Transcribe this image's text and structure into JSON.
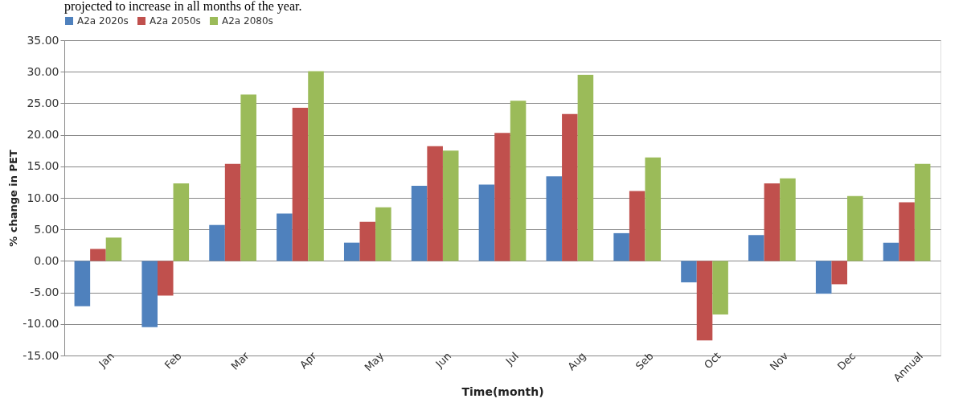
{
  "chart_data": {
    "type": "bar",
    "annotations": [
      "projected to increase in all months of the year."
    ],
    "xlabel": "Time(month)",
    "ylabel": "% change in PET",
    "categories": [
      "Jan",
      "Feb",
      "Mar",
      "Apr",
      "May",
      "Jun",
      "Jul",
      "Aug",
      "Seb",
      "Oct",
      "Nov",
      "Dec",
      "Annual"
    ],
    "series": [
      {
        "name": "A2a 2020s",
        "color": "#4f81bd",
        "values": [
          -7.2,
          -10.5,
          5.7,
          7.5,
          2.9,
          11.9,
          12.1,
          13.4,
          4.4,
          -3.4,
          4.1,
          -5.2,
          2.9
        ]
      },
      {
        "name": "A2a 2050s",
        "color": "#c0504d",
        "values": [
          1.9,
          -5.5,
          15.4,
          24.3,
          6.2,
          18.2,
          20.3,
          23.3,
          11.1,
          -12.6,
          12.3,
          -3.7,
          9.3
        ]
      },
      {
        "name": "A2a 2080s",
        "color": "#9bbb59",
        "values": [
          3.7,
          12.3,
          26.4,
          30.1,
          8.5,
          17.5,
          25.4,
          29.5,
          16.4,
          -8.5,
          13.1,
          10.3,
          15.4
        ]
      }
    ],
    "ylim": [
      -15,
      35
    ],
    "yticks": [
      {
        "value": -15,
        "label": "-15.00"
      },
      {
        "value": -10,
        "label": "-10.00"
      },
      {
        "value": -5,
        "label": "-5.00"
      },
      {
        "value": 0,
        "label": "0.00"
      },
      {
        "value": 5,
        "label": "5.00"
      },
      {
        "value": 10,
        "label": "10.00"
      },
      {
        "value": 15,
        "label": "15.00"
      },
      {
        "value": 20,
        "label": "20.00"
      },
      {
        "value": 25,
        "label": "25.00"
      },
      {
        "value": 30,
        "label": "30.00"
      },
      {
        "value": 35,
        "label": "35.00"
      }
    ],
    "grid": "y",
    "legend": "top"
  }
}
